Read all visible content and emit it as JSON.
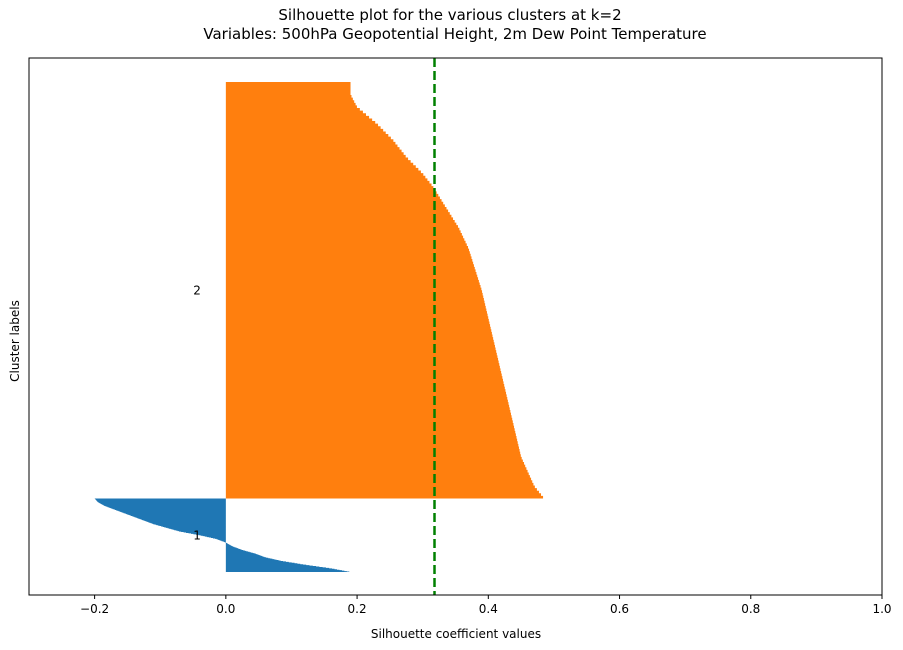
{
  "chart_data": {
    "type": "silhouette",
    "title": "Silhouette plot for the various clusters at k=2",
    "subtitle": "Variables: 500hPa Geopotential Height, 2m Dew Point Temperature",
    "xlabel": "Silhouette coefficient values",
    "ylabel": "Cluster labels",
    "xlim": [
      -0.3,
      1.0
    ],
    "xticks": [
      -0.2,
      0.0,
      0.2,
      0.4,
      0.6,
      0.8,
      1.0
    ],
    "xtick_labels": [
      "−0.2",
      "0.0",
      "0.2",
      "0.4",
      "0.6",
      "0.8",
      "1.0"
    ],
    "yticks": [],
    "grid": false,
    "average_silhouette": 0.318,
    "average_line_color": "#008000",
    "clusters": [
      {
        "label": "1",
        "color": "#1f77b4",
        "sample_fraction": 0.15,
        "profile": [
          [
            0.0,
            0.19
          ],
          [
            0.05,
            0.16
          ],
          [
            0.1,
            0.12
          ],
          [
            0.15,
            0.085
          ],
          [
            0.2,
            0.06
          ],
          [
            0.25,
            0.045
          ],
          [
            0.3,
            0.025
          ],
          [
            0.35,
            0.01
          ],
          [
            0.4,
            0.0
          ],
          [
            0.45,
            -0.015
          ],
          [
            0.5,
            -0.04
          ],
          [
            0.55,
            -0.07
          ],
          [
            0.6,
            -0.09
          ],
          [
            0.65,
            -0.11
          ],
          [
            0.7,
            -0.125
          ],
          [
            0.75,
            -0.14
          ],
          [
            0.8,
            -0.155
          ],
          [
            0.85,
            -0.17
          ],
          [
            0.9,
            -0.185
          ],
          [
            0.95,
            -0.195
          ],
          [
            1.0,
            -0.2
          ]
        ]
      },
      {
        "label": "2",
        "color": "#ff7f0e",
        "sample_fraction": 0.85,
        "profile": [
          [
            0.0,
            0.485
          ],
          [
            0.03,
            0.47
          ],
          [
            0.1,
            0.45
          ],
          [
            0.2,
            0.435
          ],
          [
            0.3,
            0.42
          ],
          [
            0.4,
            0.405
          ],
          [
            0.5,
            0.39
          ],
          [
            0.6,
            0.37
          ],
          [
            0.65,
            0.355
          ],
          [
            0.7,
            0.335
          ],
          [
            0.75,
            0.315
          ],
          [
            0.78,
            0.3
          ],
          [
            0.82,
            0.275
          ],
          [
            0.86,
            0.255
          ],
          [
            0.9,
            0.23
          ],
          [
            0.94,
            0.2
          ],
          [
            0.97,
            0.19
          ],
          [
            1.0,
            0.19
          ]
        ]
      }
    ]
  }
}
